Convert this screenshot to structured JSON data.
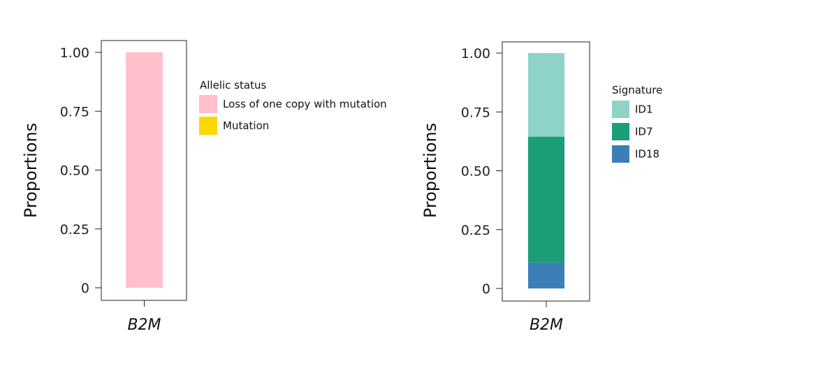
{
  "chart_data": [
    {
      "type": "bar",
      "stacked": true,
      "categories": [
        "B2M"
      ],
      "ylabel": "Proportions",
      "ylim": [
        0,
        1
      ],
      "yticks": [
        "0",
        "0.25",
        "0.50",
        "0.75",
        "1.00"
      ],
      "legend": {
        "title": "Allelic status",
        "placement": "right"
      },
      "series": [
        {
          "name": "Loss of one copy with mutation",
          "color": "#FFC0CB",
          "values": [
            1.0
          ]
        },
        {
          "name": "Mutation",
          "color": "#FFD700",
          "values": [
            0.0
          ]
        }
      ]
    },
    {
      "type": "bar",
      "stacked": true,
      "categories": [
        "B2M"
      ],
      "ylabel": "Proportions",
      "ylim": [
        0,
        1
      ],
      "yticks": [
        "0",
        "0.25",
        "0.50",
        "0.75",
        "1.00"
      ],
      "legend": {
        "title": "Signature",
        "placement": "right"
      },
      "series": [
        {
          "name": "ID1",
          "color": "#8ED3C7",
          "values": [
            0.355
          ]
        },
        {
          "name": "ID7",
          "color": "#1B9E77",
          "values": [
            0.535
          ]
        },
        {
          "name": "ID18",
          "color": "#3B7FB8",
          "values": [
            0.11
          ]
        }
      ]
    }
  ]
}
